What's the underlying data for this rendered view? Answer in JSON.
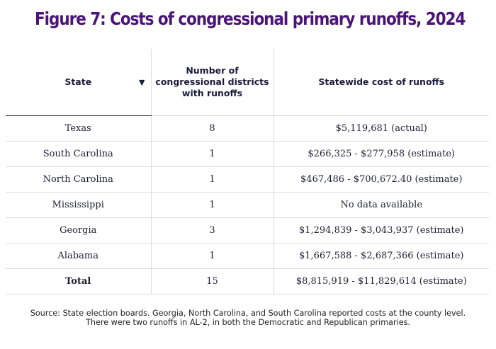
{
  "title": "Figure 7: Costs of congressional primary runoffs, 2024",
  "table": {
    "headers": {
      "state": "State",
      "districts": "Number of congressional districts with runoffs",
      "cost": "Statewide cost of runoffs"
    },
    "sort_icon": "triangle-down",
    "rows": [
      {
        "state": "Texas",
        "districts": "8",
        "cost": "$5,119,681 (actual)"
      },
      {
        "state": "South Carolina",
        "districts": "1",
        "cost": "$266,325 - $277,958 (estimate)"
      },
      {
        "state": "North Carolina",
        "districts": "1",
        "cost": "$467,486 - $700,672.40 (estimate)"
      },
      {
        "state": "Mississippi",
        "districts": "1",
        "cost": "No data available"
      },
      {
        "state": "Georgia",
        "districts": "3",
        "cost": "$1,294,839 - $3,043,937 (estimate)"
      },
      {
        "state": "Alabama",
        "districts": "1",
        "cost": "$1,667,588 - $2,687,366 (estimate)"
      }
    ],
    "total": {
      "state": "Total",
      "districts": "15",
      "cost": "$8,815,919 - $11,829,614 (estimate)"
    }
  },
  "footnotes": {
    "source": "Source: State election boards. Georgia, North Carolina, and South Carolina reported costs at the county level.",
    "note": "There were two runoffs in AL-2, in both the Democratic and Republican primaries."
  },
  "colors": {
    "title": "#4a1478",
    "text": "#1f1f33",
    "divider": "#dcdcdc"
  }
}
